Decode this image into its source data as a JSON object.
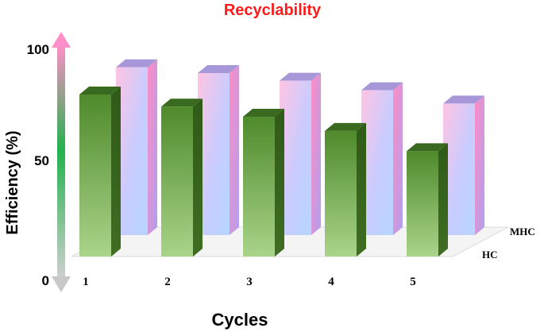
{
  "chart_data": {
    "type": "bar",
    "title": "Recyclability",
    "xlabel": "Cycles",
    "ylabel": "Efficiency (%)",
    "categories": [
      "1",
      "2",
      "3",
      "4",
      "5"
    ],
    "yticks": [
      "0",
      "50",
      "100"
    ],
    "ylim": [
      0,
      100
    ],
    "grid": false,
    "series": [
      {
        "name": "HC",
        "values": [
          80,
          74,
          69,
          62,
          52
        ],
        "color": "#4e8a2a"
      },
      {
        "name": "MHC",
        "values": [
          88,
          85,
          81,
          76,
          69
        ],
        "color": "#c8c0ff"
      }
    ],
    "colors": {
      "title": "#ff1a1a",
      "axis_top": "#ff8fc8",
      "axis_mid": "#22b24c",
      "axis_bottom": "#c8c8c8"
    }
  }
}
